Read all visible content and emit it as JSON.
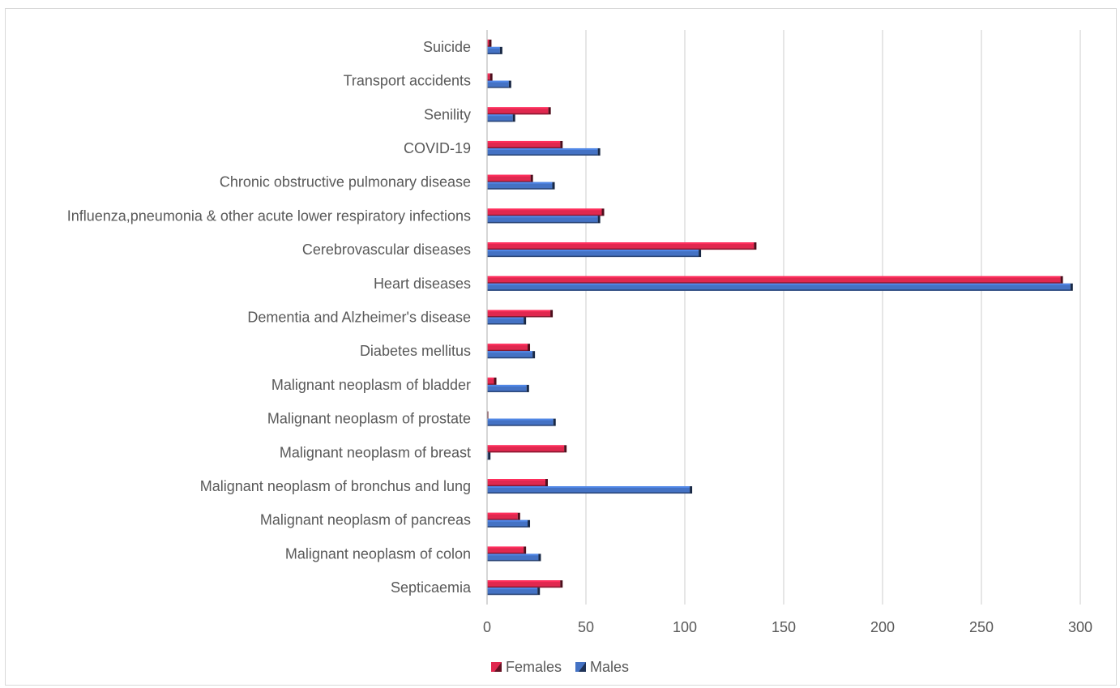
{
  "chart_data": {
    "type": "bar",
    "orientation": "horizontal",
    "categories": [
      "Suicide",
      "Transport accidents",
      "Senility",
      "COVID-19",
      "Chronic obstructive pulmonary disease",
      "Influenza,pneumonia & other acute lower respiratory infections",
      "Cerebrovascular diseases",
      "Heart diseases",
      "Dementia and Alzheimer's disease",
      "Diabetes mellitus",
      "Malignant neoplasm of bladder",
      "Malignant neoplasm of prostate",
      "Malignant neoplasm of breast",
      "Malignant neoplasm of bronchus and lung",
      "Malignant neoplasm of pancreas",
      "Malignant neoplasm of colon",
      "Septicaemia"
    ],
    "series": [
      {
        "name": "Females",
        "color": "#e0284f",
        "values": [
          1,
          1.5,
          31,
          37,
          22,
          58,
          135,
          290,
          32,
          20.5,
          3.5,
          0,
          39,
          29.5,
          15.5,
          18.5,
          37
        ]
      },
      {
        "name": "Males",
        "color": "#4472c4",
        "values": [
          6.5,
          11,
          13,
          56,
          33,
          56,
          107,
          295,
          18.5,
          23,
          20,
          33.5,
          0.5,
          102.5,
          20.5,
          26,
          25.5
        ]
      }
    ],
    "x_ticks": [
      0,
      50,
      100,
      150,
      200,
      250,
      300
    ],
    "xlim": [
      0,
      300
    ],
    "grid": "vertical",
    "legend": "bottom",
    "title": "",
    "xlabel": "",
    "ylabel": ""
  }
}
